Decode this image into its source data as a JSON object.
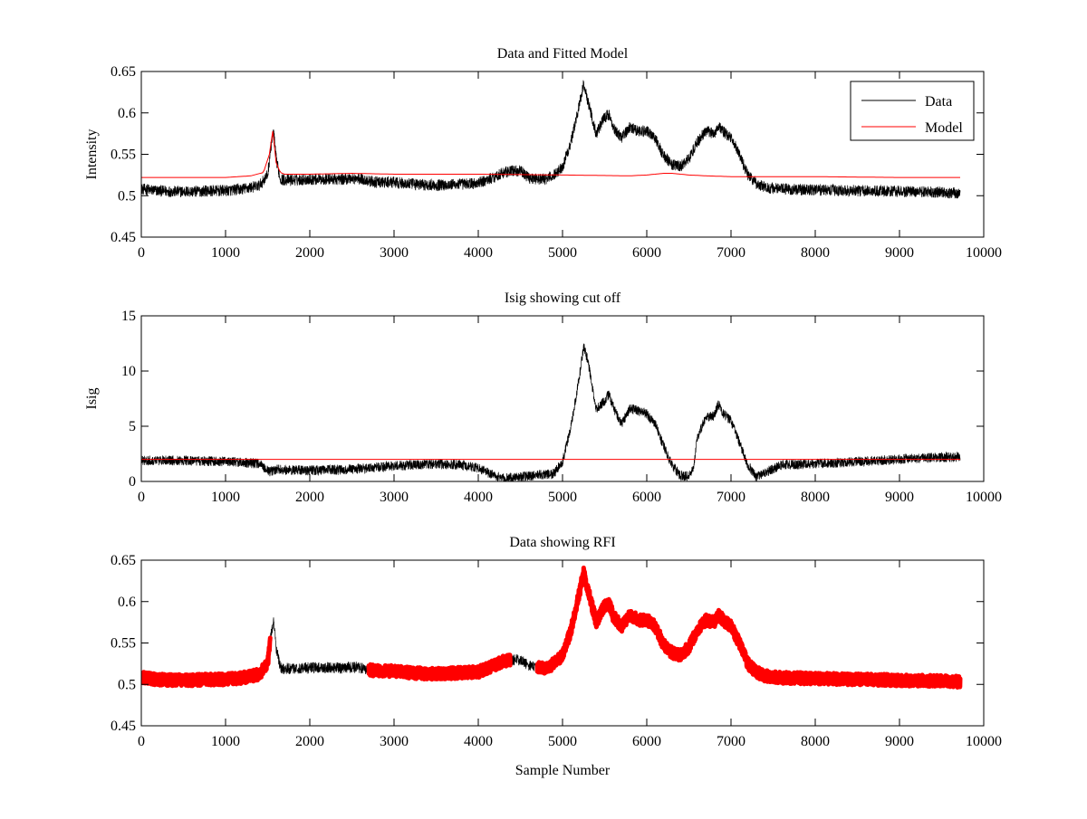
{
  "figure": {
    "background": "#ffffff",
    "xlabel": "Sample Number"
  },
  "chart_data": [
    {
      "type": "line",
      "title": "Data and Fitted Model",
      "xlabel": "",
      "ylabel": "Intensity",
      "xlim": [
        0,
        10000
      ],
      "ylim": [
        0.45,
        0.65
      ],
      "x_ticks": [
        "0",
        "1000",
        "2000",
        "3000",
        "4000",
        "5000",
        "6000",
        "7000",
        "8000",
        "9000",
        "10000"
      ],
      "y_ticks": [
        "0.45",
        "0.5",
        "0.55",
        "0.6",
        "0.65"
      ],
      "grid": false,
      "legend": {
        "position": "top-right",
        "entries": [
          "Data",
          "Model"
        ]
      },
      "series": [
        {
          "name": "Data",
          "color": "#000000",
          "noise": 0.007,
          "x": [
            0,
            200,
            400,
            600,
            800,
            1000,
            1200,
            1400,
            1500,
            1540,
            1570,
            1600,
            1650,
            1700,
            1800,
            2000,
            2200,
            2400,
            2500,
            2600,
            2800,
            3000,
            3200,
            3400,
            3600,
            3800,
            4000,
            4200,
            4300,
            4400,
            4500,
            4600,
            4700,
            4800,
            4900,
            5000,
            5100,
            5200,
            5250,
            5300,
            5400,
            5500,
            5550,
            5600,
            5700,
            5800,
            5900,
            6000,
            6100,
            6200,
            6300,
            6400,
            6500,
            6600,
            6700,
            6800,
            6850,
            6900,
            7000,
            7100,
            7200,
            7300,
            7400,
            7600,
            8000,
            8500,
            9000,
            9500,
            9720
          ],
          "y": [
            0.508,
            0.506,
            0.505,
            0.505,
            0.506,
            0.506,
            0.508,
            0.512,
            0.525,
            0.56,
            0.578,
            0.545,
            0.52,
            0.519,
            0.519,
            0.52,
            0.52,
            0.52,
            0.521,
            0.52,
            0.516,
            0.516,
            0.514,
            0.513,
            0.513,
            0.514,
            0.515,
            0.523,
            0.528,
            0.53,
            0.53,
            0.522,
            0.52,
            0.52,
            0.525,
            0.535,
            0.565,
            0.61,
            0.635,
            0.615,
            0.575,
            0.595,
            0.598,
            0.583,
            0.57,
            0.583,
            0.578,
            0.578,
            0.57,
            0.548,
            0.538,
            0.535,
            0.545,
            0.565,
            0.578,
            0.575,
            0.585,
            0.578,
            0.57,
            0.55,
            0.525,
            0.515,
            0.51,
            0.508,
            0.507,
            0.506,
            0.505,
            0.504,
            0.503
          ]
        },
        {
          "name": "Model",
          "color": "#ff0000",
          "noise": 0,
          "x": [
            0,
            1000,
            1300,
            1450,
            1520,
            1560,
            1580,
            1600,
            1650,
            1700,
            2000,
            2500,
            3000,
            4000,
            5000,
            5800,
            6000,
            6200,
            6300,
            6500,
            6700,
            7000,
            8000,
            9000,
            9720
          ],
          "y": [
            0.522,
            0.522,
            0.524,
            0.528,
            0.55,
            0.578,
            0.56,
            0.54,
            0.528,
            0.526,
            0.526,
            0.527,
            0.526,
            0.526,
            0.525,
            0.524,
            0.525,
            0.527,
            0.527,
            0.525,
            0.524,
            0.523,
            0.523,
            0.522,
            0.522
          ]
        }
      ]
    },
    {
      "type": "line",
      "title": "Isig showing cut off",
      "xlabel": "",
      "ylabel": "Isig",
      "xlim": [
        0,
        10000
      ],
      "ylim": [
        0,
        15
      ],
      "x_ticks": [
        "0",
        "1000",
        "2000",
        "3000",
        "4000",
        "5000",
        "6000",
        "7000",
        "8000",
        "9000",
        "10000"
      ],
      "y_ticks": [
        "0",
        "5",
        "10",
        "15"
      ],
      "grid": false,
      "legend": null,
      "cutoff": 2.0,
      "series": [
        {
          "name": "",
          "color": "#000000",
          "noise": 0.45,
          "x": [
            0,
            500,
            1000,
            1400,
            1520,
            1560,
            1600,
            2000,
            2500,
            3000,
            3500,
            3800,
            4000,
            4200,
            4300,
            4500,
            4700,
            4900,
            5000,
            5100,
            5200,
            5250,
            5300,
            5400,
            5500,
            5550,
            5600,
            5700,
            5800,
            5900,
            6000,
            6100,
            6200,
            6300,
            6400,
            6500,
            6550,
            6600,
            6700,
            6800,
            6850,
            6900,
            7000,
            7100,
            7200,
            7300,
            7400,
            7600,
            8000,
            8500,
            9000,
            9500,
            9720
          ],
          "y": [
            1.9,
            1.9,
            1.8,
            1.6,
            0.9,
            0.9,
            1.1,
            1.0,
            1.1,
            1.4,
            1.6,
            1.5,
            1.2,
            0.5,
            0.3,
            0.4,
            0.6,
            0.7,
            1.8,
            5,
            9.5,
            12.2,
            11,
            6.5,
            7.3,
            7.9,
            6.8,
            5.2,
            6.6,
            6.4,
            6.1,
            5.2,
            3.2,
            1.5,
            0.5,
            0.5,
            1.0,
            4.0,
            5.8,
            6.0,
            7.0,
            6.2,
            5.5,
            3.5,
            1.5,
            0.4,
            0.8,
            1.5,
            1.6,
            1.8,
            2.0,
            2.2,
            2.2
          ]
        },
        {
          "name": "",
          "color": "#ff0000",
          "noise": 0,
          "x": [
            0,
            9720
          ],
          "y": [
            2.0,
            2.0
          ]
        }
      ]
    },
    {
      "type": "line",
      "title": "Data showing RFI",
      "xlabel": "Sample Number",
      "ylabel": "",
      "xlim": [
        0,
        10000
      ],
      "ylim": [
        0.45,
        0.65
      ],
      "x_ticks": [
        "0",
        "1000",
        "2000",
        "3000",
        "4000",
        "5000",
        "6000",
        "7000",
        "8000",
        "9000",
        "10000"
      ],
      "y_ticks": [
        "0.45",
        "0.5",
        "0.55",
        "0.6",
        "0.65"
      ],
      "grid": false,
      "legend": null,
      "rfi_color": "#ff0000",
      "rfi_ranges": [
        [
          0,
          1530
        ],
        [
          2700,
          4380
        ],
        [
          4700,
          9720
        ]
      ],
      "series": [
        {
          "name": "",
          "color": "#000000",
          "noise": 0.007,
          "x": [
            0,
            200,
            400,
            600,
            800,
            1000,
            1200,
            1400,
            1500,
            1540,
            1570,
            1600,
            1650,
            1700,
            1800,
            2000,
            2200,
            2400,
            2500,
            2600,
            2800,
            3000,
            3200,
            3400,
            3600,
            3800,
            4000,
            4200,
            4300,
            4400,
            4500,
            4600,
            4700,
            4800,
            4900,
            5000,
            5100,
            5200,
            5250,
            5300,
            5400,
            5500,
            5550,
            5600,
            5700,
            5800,
            5900,
            6000,
            6100,
            6200,
            6300,
            6400,
            6500,
            6600,
            6700,
            6800,
            6850,
            6900,
            7000,
            7100,
            7200,
            7300,
            7400,
            7600,
            8000,
            8500,
            9000,
            9500,
            9720
          ],
          "y": [
            0.508,
            0.506,
            0.505,
            0.505,
            0.506,
            0.506,
            0.508,
            0.512,
            0.525,
            0.56,
            0.578,
            0.545,
            0.52,
            0.519,
            0.519,
            0.52,
            0.52,
            0.52,
            0.521,
            0.52,
            0.516,
            0.516,
            0.514,
            0.513,
            0.513,
            0.514,
            0.515,
            0.523,
            0.528,
            0.53,
            0.53,
            0.522,
            0.52,
            0.52,
            0.525,
            0.535,
            0.565,
            0.61,
            0.635,
            0.615,
            0.575,
            0.595,
            0.598,
            0.583,
            0.57,
            0.583,
            0.578,
            0.578,
            0.57,
            0.548,
            0.538,
            0.535,
            0.545,
            0.565,
            0.578,
            0.575,
            0.585,
            0.578,
            0.57,
            0.55,
            0.525,
            0.515,
            0.51,
            0.508,
            0.507,
            0.506,
            0.505,
            0.504,
            0.503
          ]
        }
      ]
    }
  ]
}
